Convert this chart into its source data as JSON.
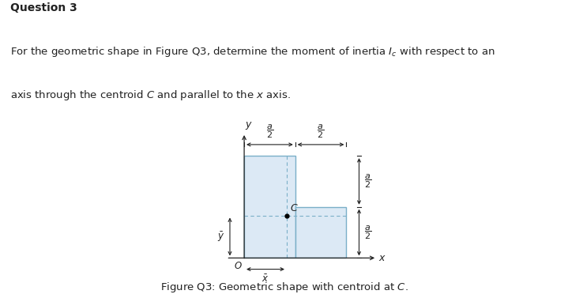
{
  "background_color": "#ffffff",
  "shape_fill": "#dce9f5",
  "shape_edge": "#7aafc8",
  "axis_color": "#222222",
  "dim_color": "#222222",
  "dashed_color": "#7aafc8",
  "text_color": "#222222",
  "fig_width": 7.19,
  "fig_height": 3.77,
  "dpi": 100,
  "question_text": "Question 3",
  "body_line1": "For the geometric shape in Figure Q3, determine the moment of inertia $I_c$ with respect to an",
  "body_line2": "axis through the centroid $C$ and parallel to the $x$ axis.",
  "caption": "Figure Q3: Geometric shape with centroid at $C$."
}
